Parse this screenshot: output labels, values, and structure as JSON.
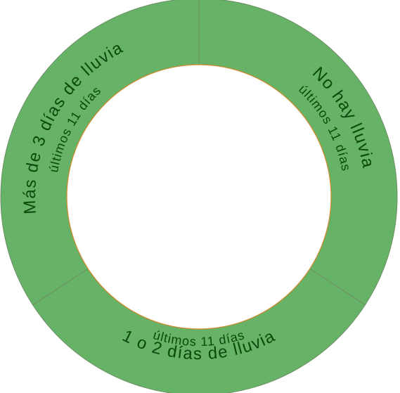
{
  "colors": {
    "segment_fill": "#66b266",
    "label_text": "#0a4a0a",
    "center_fill": "#ffffff"
  },
  "segments": [
    {
      "id": "no-rain",
      "title": "No hay lluvia",
      "subtitle": "últimos 11 días"
    },
    {
      "id": "one-two-days",
      "title": "1 o 2 días de lluvia",
      "subtitle": "últimos 11 días"
    },
    {
      "id": "more-than-three",
      "title": "Más de 3 días de lluvia",
      "subtitle": "últimos 11 días"
    }
  ]
}
